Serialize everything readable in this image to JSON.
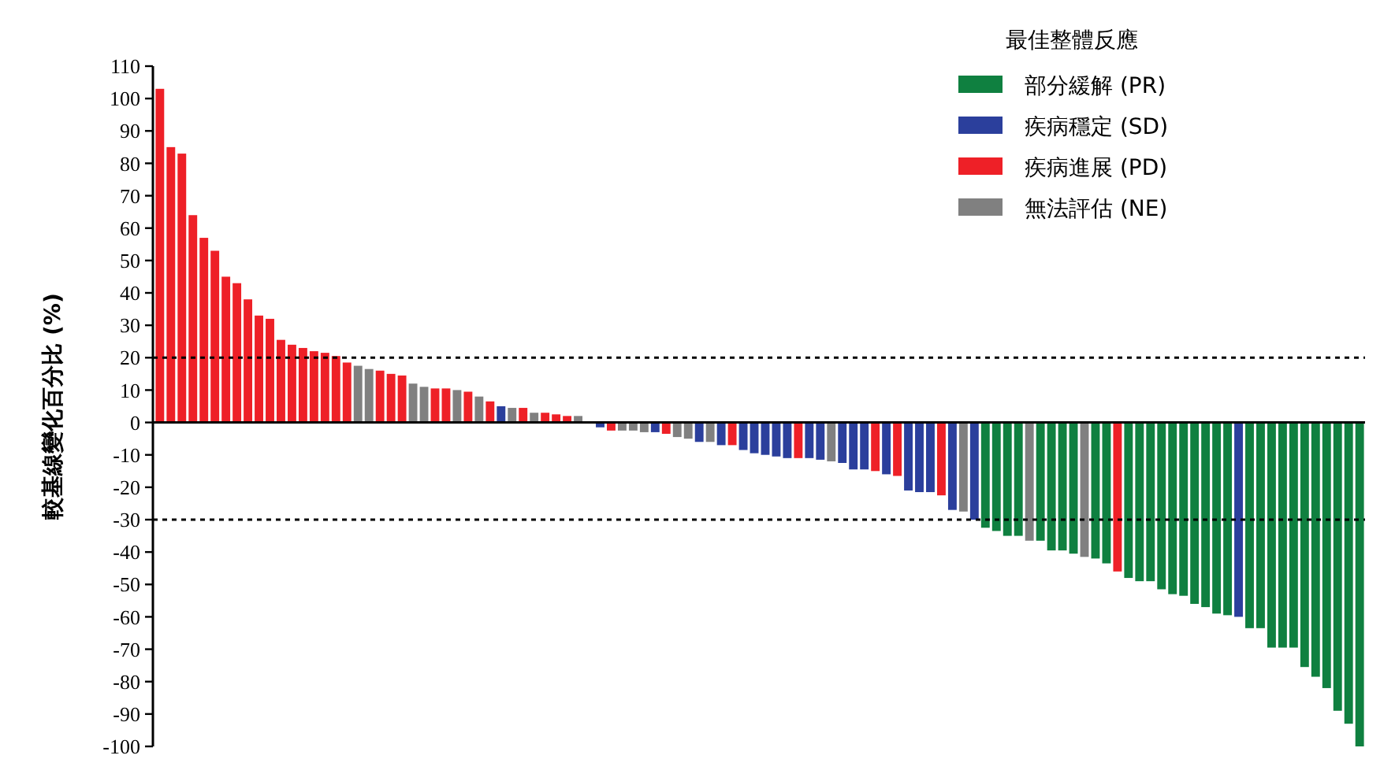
{
  "chart_data": {
    "type": "bar",
    "ylabel": "較基線變化百分比 (%)",
    "legend_title": "最佳整體反應",
    "legend": "top right",
    "grid": false,
    "categories": [
      null,
      null,
      null,
      null,
      null,
      null,
      null,
      null,
      null,
      null,
      null,
      null,
      null,
      null,
      null,
      null,
      null,
      null,
      null,
      null,
      null,
      null,
      null,
      null,
      null,
      null,
      null,
      null,
      null,
      null,
      null,
      null,
      null,
      null,
      null,
      null,
      null,
      null,
      null,
      null,
      null,
      null,
      null,
      null,
      null,
      null,
      null,
      null,
      null,
      null,
      null,
      null,
      null,
      null,
      null,
      null,
      null,
      null,
      null,
      null,
      null,
      null,
      null,
      null,
      null,
      null,
      null,
      null,
      null,
      null,
      null,
      null,
      null,
      null,
      null,
      null,
      null,
      null,
      null,
      null,
      null,
      null,
      null,
      null,
      null,
      null,
      null,
      null,
      null,
      null,
      null,
      null,
      null,
      null,
      null,
      null,
      null,
      null,
      null,
      null,
      null,
      null,
      null,
      null,
      null,
      null,
      null,
      null,
      null,
      null
    ],
    "ylim": [
      -100,
      110
    ],
    "yticks": [
      -100,
      -90,
      -80,
      -70,
      -60,
      -50,
      -40,
      -30,
      -20,
      -10,
      0,
      10,
      20,
      30,
      40,
      50,
      60,
      70,
      80,
      90,
      100,
      110
    ],
    "ref_lines": [
      {
        "axis": "y",
        "value": 20,
        "color": "#000000",
        "line_style": "dashed"
      },
      {
        "axis": "y",
        "value": -30,
        "color": "#000000",
        "line_style": "dashed"
      }
    ],
    "series": [
      {
        "name": "部分緩解 (PR)",
        "color": "#0f8040",
        "values": [
          null,
          null,
          null,
          null,
          null,
          null,
          null,
          null,
          null,
          null,
          null,
          null,
          null,
          null,
          null,
          null,
          null,
          null,
          null,
          null,
          null,
          null,
          null,
          null,
          null,
          null,
          null,
          null,
          null,
          null,
          null,
          null,
          null,
          null,
          null,
          null,
          null,
          null,
          null,
          null,
          null,
          null,
          null,
          null,
          null,
          null,
          null,
          null,
          null,
          null,
          null,
          null,
          null,
          null,
          null,
          null,
          null,
          null,
          null,
          null,
          null,
          null,
          null,
          null,
          null,
          null,
          null,
          null,
          null,
          null,
          null,
          null,
          null,
          null,
          null,
          -32.5,
          -33.5,
          -35,
          -35,
          null,
          -36.5,
          -39.5,
          -39.5,
          -40.5,
          null,
          -42,
          -43.5,
          null,
          -48,
          -49,
          -49,
          -51.5,
          -53,
          -53.5,
          -56,
          -57,
          -59,
          -59.5,
          null,
          -63.5,
          -63.5,
          -69.5,
          -69.5,
          -69.5,
          -75.5,
          -78.5,
          -82,
          -89,
          -93,
          -100
        ]
      },
      {
        "name": "疾病穩定 (SD)",
        "color": "#2b3f9c",
        "values": [
          null,
          null,
          null,
          null,
          null,
          null,
          null,
          null,
          null,
          null,
          null,
          null,
          null,
          null,
          null,
          null,
          null,
          null,
          null,
          null,
          null,
          null,
          null,
          null,
          null,
          null,
          null,
          null,
          null,
          null,
          null,
          5,
          null,
          null,
          null,
          null,
          null,
          null,
          null,
          null,
          -1.5,
          null,
          null,
          null,
          null,
          -3,
          null,
          null,
          null,
          -6,
          null,
          -7,
          null,
          -8.5,
          -9.5,
          -10,
          -10.5,
          -11,
          null,
          -11,
          -11.5,
          null,
          -12.5,
          -14.5,
          -14.5,
          null,
          -16,
          null,
          -21,
          -21.5,
          -21.5,
          null,
          -27,
          null,
          -30,
          null,
          null,
          null,
          null,
          null,
          null,
          null,
          null,
          null,
          null,
          null,
          null,
          null,
          null,
          null,
          null,
          null,
          null,
          null,
          null,
          null,
          null,
          null,
          -60,
          null,
          null,
          null,
          null,
          null,
          null,
          null,
          null,
          null,
          null,
          null
        ]
      },
      {
        "name": "疾病進展 (PD)",
        "color": "#ee2027",
        "values": [
          103,
          85,
          83,
          64,
          57,
          53,
          45,
          43,
          38,
          33,
          32,
          25.5,
          24,
          23,
          22,
          21.5,
          20.5,
          18.5,
          null,
          null,
          16,
          15,
          14.5,
          null,
          null,
          10.5,
          10.5,
          null,
          9.5,
          null,
          6.5,
          null,
          null,
          4.5,
          null,
          3,
          2.5,
          2,
          null,
          null,
          null,
          -2.5,
          null,
          null,
          null,
          null,
          -3.5,
          null,
          null,
          null,
          null,
          null,
          -7,
          null,
          null,
          null,
          null,
          null,
          -11,
          null,
          null,
          null,
          null,
          null,
          null,
          -15,
          null,
          -16.5,
          null,
          null,
          null,
          -22.5,
          null,
          null,
          null,
          null,
          null,
          null,
          null,
          null,
          null,
          null,
          null,
          null,
          null,
          null,
          null,
          -46,
          null,
          null,
          null,
          null,
          null,
          null,
          null,
          null,
          null,
          null,
          null,
          null,
          null,
          null,
          null,
          null,
          null,
          null,
          null,
          null,
          null,
          null
        ]
      },
      {
        "name": "無法評估 (NE)",
        "color": "#808080",
        "values": [
          null,
          null,
          null,
          null,
          null,
          null,
          null,
          null,
          null,
          null,
          null,
          null,
          null,
          null,
          null,
          null,
          null,
          null,
          17.5,
          16.5,
          null,
          null,
          null,
          12,
          11,
          null,
          null,
          10,
          null,
          8,
          null,
          null,
          4.5,
          null,
          3,
          null,
          null,
          null,
          2,
          null,
          null,
          null,
          -2.5,
          -2.5,
          -3,
          null,
          null,
          -4.5,
          -5,
          null,
          -6,
          null,
          null,
          null,
          null,
          null,
          null,
          null,
          null,
          null,
          null,
          -12,
          null,
          null,
          null,
          null,
          null,
          null,
          null,
          null,
          null,
          null,
          null,
          -27.5,
          null,
          null,
          null,
          null,
          null,
          -36.5,
          null,
          null,
          null,
          null,
          -41.5,
          null,
          null,
          null,
          null,
          null,
          null,
          null,
          null,
          null,
          null,
          null,
          null,
          null,
          null,
          null,
          null,
          null,
          null,
          null,
          null,
          null,
          null,
          null,
          null,
          null
        ]
      }
    ]
  }
}
